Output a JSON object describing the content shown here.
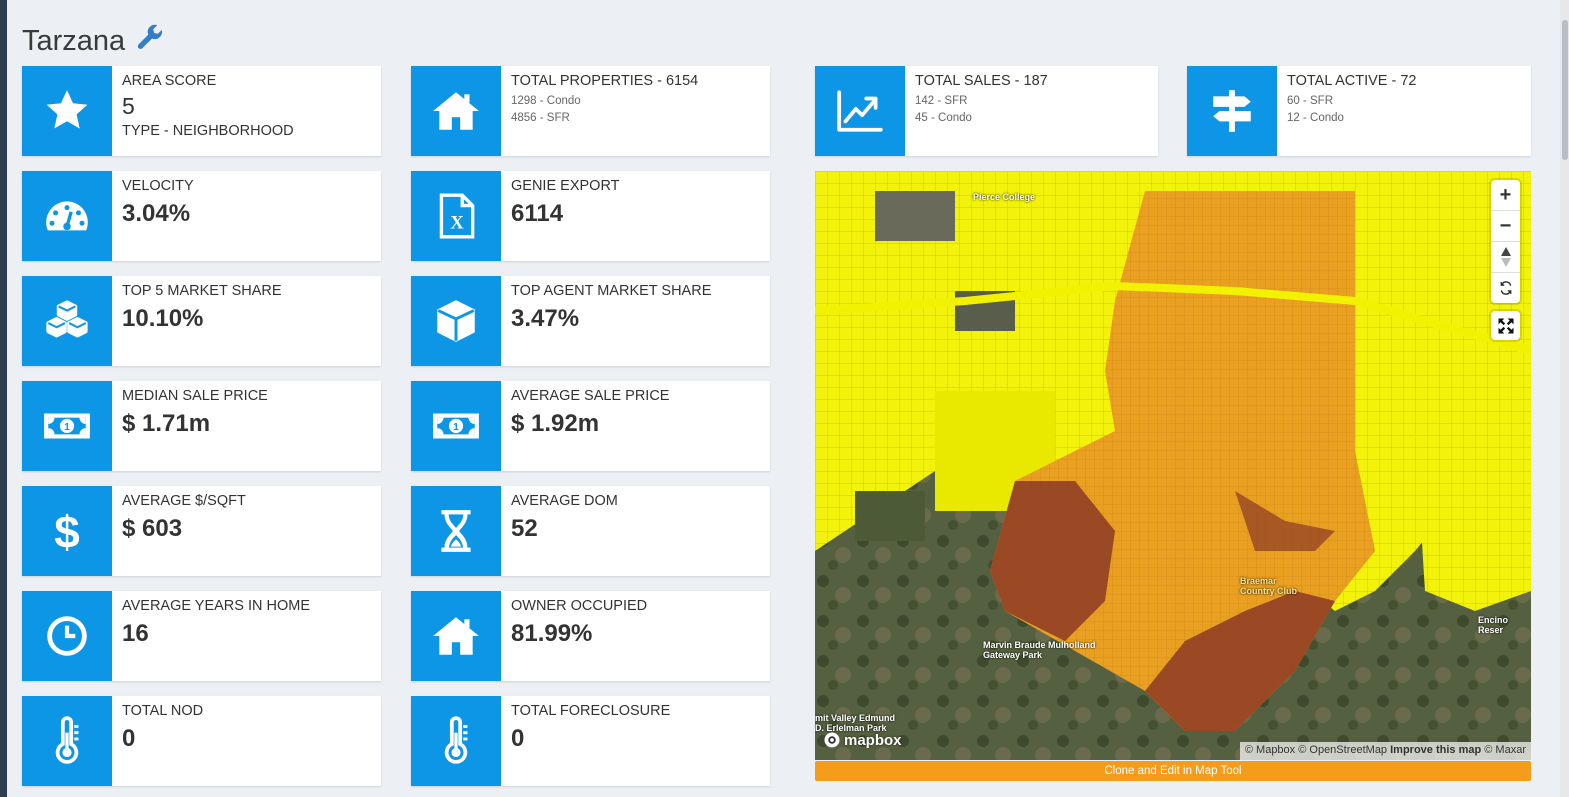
{
  "page": {
    "title": "Tarzana",
    "title_icon": "wrench-icon"
  },
  "cards_left": [
    {
      "icon": "star-icon",
      "label": "AREA SCORE",
      "value": "5",
      "extra": "TYPE - NEIGHBORHOOD"
    },
    {
      "icon": "speedometer-icon",
      "label": "VELOCITY",
      "value": "3.04%"
    },
    {
      "icon": "cubes-icon",
      "label": "TOP 5 MARKET SHARE",
      "value": "10.10%"
    },
    {
      "icon": "money-bill-icon",
      "label": "MEDIAN SALE PRICE",
      "value": "$ 1.71m"
    },
    {
      "icon": "dollar-sign-icon",
      "label": "AVERAGE $/SQFT",
      "value": "$ 603"
    },
    {
      "icon": "clock-icon",
      "label": "AVERAGE YEARS IN HOME",
      "value": "16"
    },
    {
      "icon": "thermometer-icon",
      "label": "TOTAL NOD",
      "value": "0"
    }
  ],
  "cards_mid": [
    {
      "icon": "home-icon",
      "label": "TOTAL PROPERTIES - 6154",
      "sub": [
        "1298 - Condo",
        "4856 - SFR"
      ]
    },
    {
      "icon": "excel-file-icon",
      "label": "GENIE EXPORT",
      "value": "6114"
    },
    {
      "icon": "cube-icon",
      "label": "TOP AGENT MARKET SHARE",
      "value": "3.47%"
    },
    {
      "icon": "money-bill-icon",
      "label": "AVERAGE SALE PRICE",
      "value": "$ 1.92m"
    },
    {
      "icon": "hourglass-icon",
      "label": "AVERAGE DOM",
      "value": "52"
    },
    {
      "icon": "home-icon",
      "label": "OWNER OCCUPIED",
      "value": "81.99%"
    },
    {
      "icon": "thermometer-icon",
      "label": "TOTAL FORECLOSURE",
      "value": "0"
    }
  ],
  "cards_top_right": [
    {
      "icon": "line-chart-icon",
      "label": "TOTAL SALES - 187",
      "sub": [
        "142 - SFR",
        "45 - Condo"
      ]
    },
    {
      "icon": "signpost-icon",
      "label": "TOTAL ACTIVE - 72",
      "sub": [
        "60 - SFR",
        "12 - Condo"
      ]
    }
  ],
  "map": {
    "labels": [
      "Pierce College",
      "Braemar Country Club",
      "Marvin Braude Mulholland Gateway Park",
      "Encino Reser",
      "mit Valley Edmund D. Erlelman Park"
    ],
    "controls": {
      "zoom_in": "+",
      "zoom_out": "−"
    },
    "logo": "mapbox",
    "attribution": [
      "© Mapbox",
      "© OpenStreetMap",
      "Improve this map",
      "© Maxar"
    ]
  },
  "clone_button": "Clone and Edit in Map Tool",
  "colors": {
    "accent": "#0e96e6",
    "button": "#f59c1a",
    "map_highlight": "#e9a021",
    "map_parcels": "#f2f20a"
  }
}
